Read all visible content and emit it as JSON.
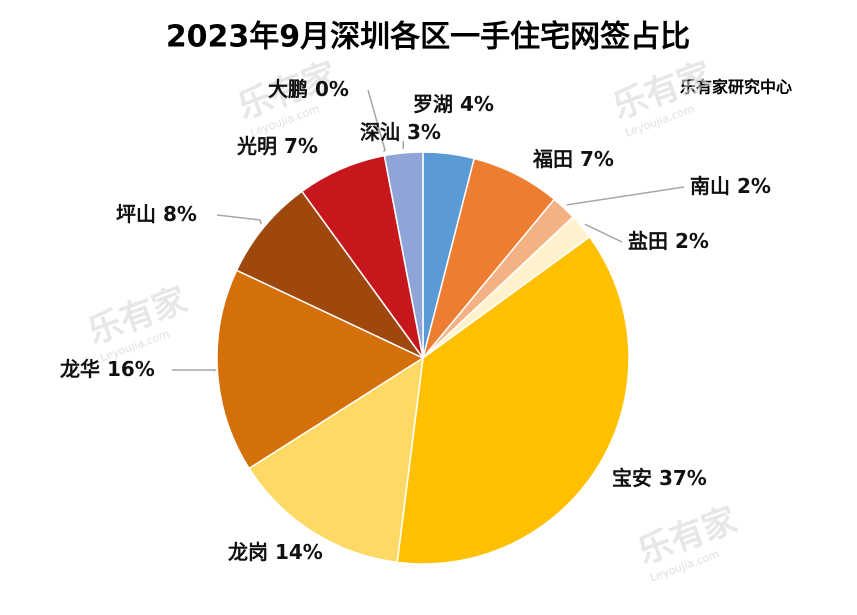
{
  "chart_data": {
    "type": "pie",
    "title": "2023年9月深圳各区一手住宅网签占比",
    "source": "乐有家研究中心",
    "watermark": "乐有家",
    "watermark_sub": "Leyoujia.com",
    "categories": [
      "罗湖",
      "福田",
      "南山",
      "盐田",
      "宝安",
      "龙岗",
      "龙华",
      "坪山",
      "光明",
      "大鹏",
      "深汕"
    ],
    "values": [
      4,
      7,
      2,
      2,
      37,
      14,
      16,
      8,
      7,
      0,
      3
    ],
    "value_labels": [
      "4%",
      "7%",
      "2%",
      "2%",
      "37%",
      "14%",
      "16%",
      "8%",
      "7%",
      "0%",
      "3%"
    ],
    "colors": [
      "#5b9bd5",
      "#ed7d31",
      "#f4b183",
      "#fff2cc",
      "#ffc000",
      "#ffd966",
      "#d4700a",
      "#9e480e",
      "#c8161d",
      "#c00000",
      "#8fa5d8"
    ]
  }
}
